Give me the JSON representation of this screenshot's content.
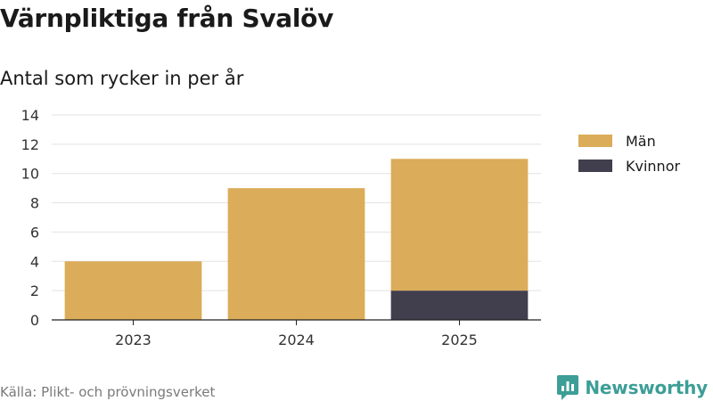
{
  "title": "Värnpliktiga från Svalöv",
  "subtitle": "Antal som rycker in per år",
  "source": "Källa: Plikt- och prövningsverket",
  "brand": {
    "name": "Newsworthy",
    "icon": "bar-chart-speech-bubble-icon",
    "color": "#3d9e97"
  },
  "chart_data": {
    "type": "bar",
    "stacked": true,
    "categories": [
      "2023",
      "2024",
      "2025"
    ],
    "series": [
      {
        "name": "Män",
        "values": [
          4,
          9,
          9
        ],
        "color": "#dbac59"
      },
      {
        "name": "Kvinnor",
        "values": [
          0,
          0,
          2
        ],
        "color": "#413f4d"
      }
    ],
    "ylim": [
      0,
      14
    ],
    "yticks": [
      0,
      2,
      4,
      6,
      8,
      10,
      12,
      14
    ],
    "grid": true,
    "legend": "right",
    "legend_order": [
      "Män",
      "Kvinnor"
    ],
    "xlabel": "",
    "ylabel": ""
  }
}
